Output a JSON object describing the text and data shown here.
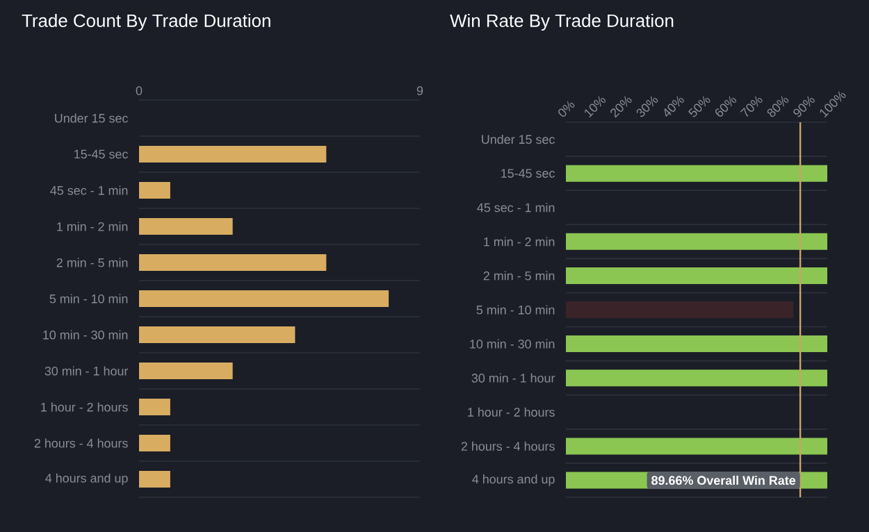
{
  "chart_data": [
    {
      "type": "bar",
      "orientation": "horizontal",
      "title": "Trade Count By Trade Duration",
      "categories": [
        "Under 15 sec",
        "15-45 sec",
        "45 sec - 1 min",
        "1 min - 2 min",
        "2 min - 5 min",
        "5 min - 10 min",
        "10 min - 30 min",
        "30 min - 1 hour",
        "1 hour - 2 hours",
        "2 hours - 4 hours",
        "4 hours and up"
      ],
      "values": [
        0,
        6,
        1,
        3,
        6,
        8,
        5,
        3,
        1,
        1,
        1
      ],
      "color": "#d8ad62",
      "xlim": [
        0,
        9
      ],
      "xticks": [
        0,
        9
      ],
      "grid": "y"
    },
    {
      "type": "bar",
      "orientation": "horizontal",
      "title": "Win Rate By Trade Duration",
      "categories": [
        "Under 15 sec",
        "15-45 sec",
        "45 sec - 1 min",
        "1 min - 2 min",
        "2 min - 5 min",
        "5 min - 10 min",
        "10 min - 30 min",
        "30 min - 1 hour",
        "1 hour - 2 hours",
        "2 hours - 4 hours",
        "4 hours and up"
      ],
      "values": [
        null,
        100,
        0,
        100,
        100,
        87,
        100,
        100,
        0,
        100,
        100
      ],
      "colors": [
        "#8bc652",
        "#8bc652",
        "#8bc652",
        "#8bc652",
        "#8bc652",
        "#3a2329",
        "#8bc652",
        "#8bc652",
        "#8bc652",
        "#8bc652",
        "#8bc652"
      ],
      "xlim": [
        0,
        100
      ],
      "xticks": [
        {
          "value": 0,
          "label": "0%"
        },
        {
          "value": 10,
          "label": "10%"
        },
        {
          "value": 20,
          "label": "20%"
        },
        {
          "value": 30,
          "label": "30%"
        },
        {
          "value": 40,
          "label": "40%"
        },
        {
          "value": 50,
          "label": "50%"
        },
        {
          "value": 60,
          "label": "60%"
        },
        {
          "value": 70,
          "label": "70%"
        },
        {
          "value": 80,
          "label": "80%"
        },
        {
          "value": 90,
          "label": "90%"
        },
        {
          "value": 100,
          "label": "100%"
        }
      ],
      "grid": "y",
      "ref_lines": [
        {
          "axis": "x",
          "value": 89.66,
          "label": "89.66% Overall Win Rate",
          "color": "#c9a46a"
        }
      ]
    }
  ]
}
